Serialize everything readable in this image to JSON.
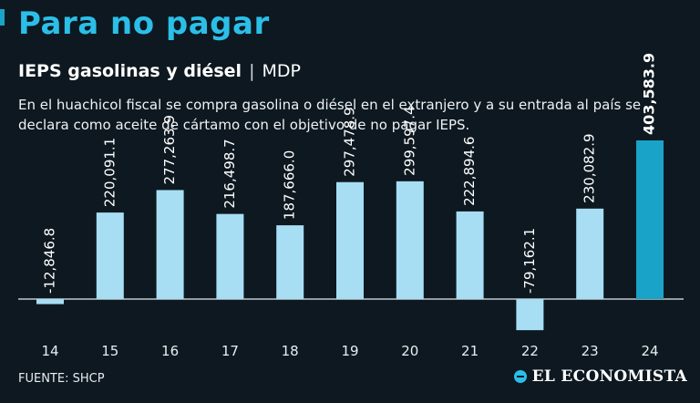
{
  "header": {
    "title": "Para no pagar",
    "subtitle_main": "IEPS gasolinas y diésel",
    "subtitle_sep": "|",
    "subtitle_unit": "MDP",
    "description": "En el huachicol fiscal se compra gasolina o diésel en el extranjero y a su entrada al país se declara como aceite de cártamo con el objetivo de no pagar IEPS."
  },
  "footer": {
    "source": "FUENTE: SHCP",
    "logo_text": "EL ECONOMISTA"
  },
  "colors": {
    "bar": "#a7def4",
    "highlight": "#1aa3c9",
    "background": "#0d1820",
    "title": "#2bbfe8"
  },
  "chart_data": {
    "type": "bar",
    "categories": [
      "14",
      "15",
      "16",
      "17",
      "18",
      "19",
      "20",
      "21",
      "22",
      "23",
      "24"
    ],
    "values": [
      -12846.8,
      220091.1,
      277263.9,
      216498.7,
      187666.0,
      297478.9,
      299597.4,
      222894.6,
      -79162.1,
      230082.9,
      403583.9
    ],
    "labels": [
      "-12,846.8",
      "220,091.1",
      "277,263.9",
      "216,498.7",
      "187,666.0",
      "297,478.9",
      "299,597.4",
      "222,894.6",
      "-79,162.1",
      "230,082.9",
      "403,583.9"
    ],
    "highlight_index": 10,
    "ylim": [
      -80000,
      404000
    ],
    "grid": false
  }
}
